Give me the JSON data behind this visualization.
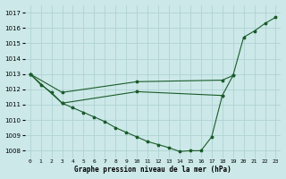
{
  "title": "Graphe pression niveau de la mer (hPa)",
  "x_labels": [
    "0",
    "1",
    "2",
    "3",
    "4",
    "5",
    "6",
    "7",
    "8",
    "9",
    "10",
    "11",
    "12",
    "13",
    "14",
    "15",
    "16",
    "17",
    "18",
    "19",
    "20",
    "21",
    "22",
    "23"
  ],
  "xlim": [
    -0.5,
    23.5
  ],
  "ylim": [
    1007.5,
    1017.5
  ],
  "yticks": [
    1008,
    1009,
    1010,
    1011,
    1012,
    1013,
    1014,
    1015,
    1016,
    1017
  ],
  "background_color": "#cce8e8",
  "grid_color": "#aacfcf",
  "line_color": "#1a5c2a",
  "line1_x": [
    0,
    1,
    2,
    3,
    4,
    5,
    6,
    7,
    8,
    9,
    10,
    11,
    12,
    13,
    14,
    15,
    16,
    17,
    18
  ],
  "line1_y": [
    1013.0,
    1012.3,
    1011.8,
    1011.1,
    1010.8,
    1010.5,
    1010.2,
    1009.9,
    1009.5,
    1009.2,
    1008.9,
    1008.6,
    1008.4,
    1008.2,
    1007.95,
    1008.0,
    1008.0,
    1008.9,
    1011.6
  ],
  "line2_x": [
    0,
    3,
    10,
    18,
    19,
    20,
    21,
    22,
    23
  ],
  "line2_y": [
    1013.0,
    1011.8,
    1012.5,
    1012.6,
    1012.9,
    1015.4,
    1015.8,
    1016.3,
    1016.7
  ],
  "line3_x": [
    0,
    3,
    10,
    18,
    19
  ],
  "line3_y": [
    1013.0,
    1011.1,
    1011.85,
    1011.6,
    1012.9
  ]
}
